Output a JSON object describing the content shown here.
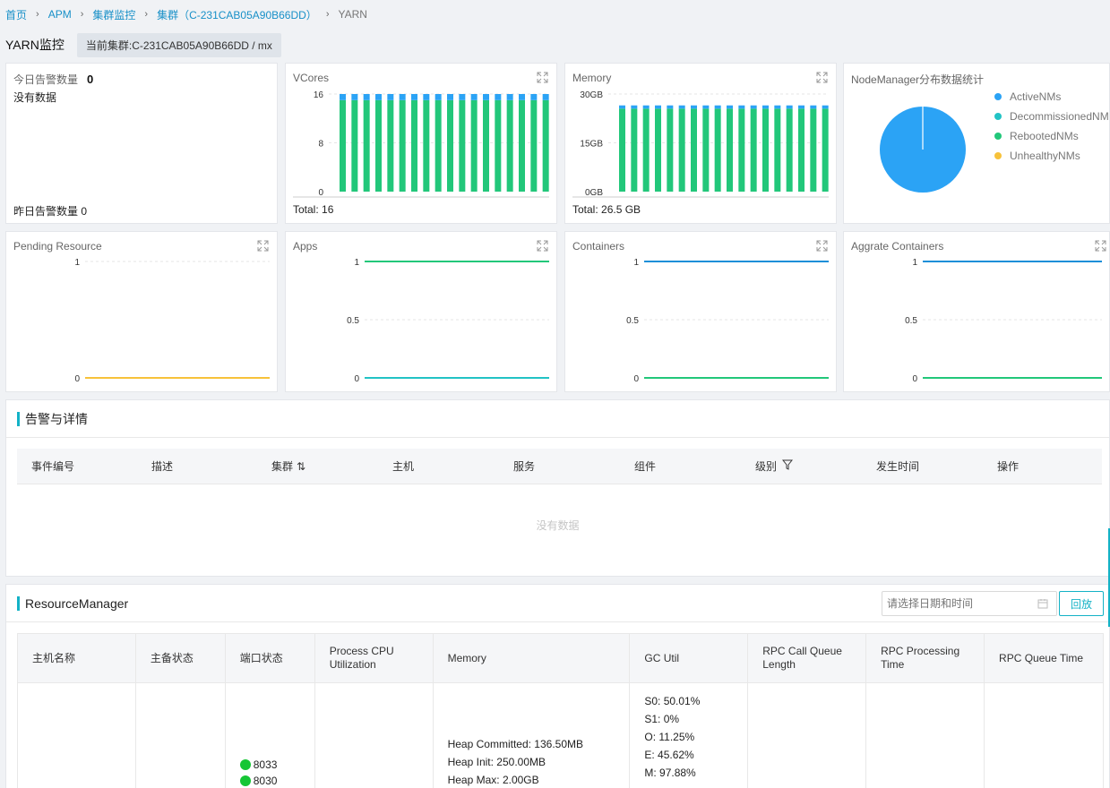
{
  "breadcrumb": {
    "home": "首页",
    "apm": "APM",
    "cluster_monitor": "集群监控",
    "cluster": "集群（C-231CAB05A90B66DD）",
    "current": "YARN"
  },
  "header": {
    "title": "YARN监控",
    "current_cluster": "当前集群:C-231CAB05A90B66DD / mx"
  },
  "alarms": {
    "today_label": "今日告警数量",
    "today_count": "0",
    "no_data": "没有数据",
    "yesterday": "昨日告警数量 0"
  },
  "colors": {
    "green": "#22c77a",
    "blue": "#2ba3f5",
    "teal": "#22c3c5",
    "yellow": "#f7c23a",
    "accent": "#13b2c6",
    "line_blue": "#1a8fd8"
  },
  "vcores": {
    "title": "VCores",
    "total": "Total: 16",
    "chart_data": {
      "type": "bar",
      "stacked": true,
      "bar_count": 18,
      "series": [
        {
          "name": "",
          "color": "green",
          "values": [
            15,
            15,
            15,
            15,
            15,
            15,
            15,
            15,
            15,
            15,
            15,
            15,
            15,
            15,
            15,
            15,
            15,
            15
          ]
        },
        {
          "name": "",
          "color": "blue",
          "values": [
            1,
            1,
            1,
            1,
            1,
            1,
            1,
            1,
            1,
            1,
            1,
            1,
            1,
            1,
            1,
            1,
            1,
            1
          ]
        }
      ],
      "ylim": [
        0,
        16
      ],
      "yticks": [
        "0",
        "8",
        "16"
      ]
    }
  },
  "memory": {
    "title": "Memory",
    "total": "Total: 26.5 GB",
    "chart_data": {
      "type": "bar",
      "stacked": true,
      "bar_count": 18,
      "series": [
        {
          "name": "",
          "color": "green",
          "values": [
            25.5,
            25.5,
            25.5,
            25.5,
            25.5,
            25.5,
            25.5,
            25.5,
            25.5,
            25.5,
            25.5,
            25.5,
            25.5,
            25.5,
            25.5,
            25.5,
            25.5,
            25.5
          ]
        },
        {
          "name": "",
          "color": "blue",
          "values": [
            1,
            1,
            1,
            1,
            1,
            1,
            1,
            1,
            1,
            1,
            1,
            1,
            1,
            1,
            1,
            1,
            1,
            1
          ]
        }
      ],
      "ylim": [
        0,
        30
      ],
      "yticks": [
        "0GB",
        "15GB",
        "30GB"
      ]
    }
  },
  "nodemanager": {
    "title": "NodeManager分布数据统计",
    "chart_data": {
      "type": "pie",
      "slices": [
        {
          "name": "ActiveNMs",
          "value": 1,
          "color": "blue"
        },
        {
          "name": "DecommissionedNMs",
          "value": 0,
          "color": "teal"
        },
        {
          "name": "RebootedNMs",
          "value": 0,
          "color": "green"
        },
        {
          "name": "UnhealthyNMs",
          "value": 0,
          "color": "yellow"
        }
      ]
    },
    "legend": [
      "ActiveNMs",
      "DecommissionedNMs",
      "RebootedNMs",
      "UnhealthyNMs"
    ]
  },
  "pending": {
    "title": "Pending Resource",
    "chart_data": {
      "type": "line",
      "yticks": [
        "0",
        "1"
      ],
      "ylim": [
        0,
        1
      ],
      "series": [
        {
          "name": "",
          "color": "yellow",
          "values": [
            0,
            0
          ]
        }
      ]
    }
  },
  "apps": {
    "title": "Apps",
    "chart_data": {
      "type": "line",
      "yticks": [
        "0",
        "0.5",
        "1"
      ],
      "ylim": [
        0,
        1
      ],
      "series": [
        {
          "name": "",
          "color": "green",
          "values": [
            1,
            1
          ]
        },
        {
          "name": "",
          "color": "teal",
          "values": [
            0,
            0
          ]
        }
      ]
    }
  },
  "containers": {
    "title": "Containers",
    "chart_data": {
      "type": "line",
      "yticks": [
        "0",
        "0.5",
        "1"
      ],
      "ylim": [
        0,
        1
      ],
      "series": [
        {
          "name": "",
          "color": "line_blue",
          "values": [
            1,
            1
          ]
        },
        {
          "name": "",
          "color": "green",
          "values": [
            0,
            0
          ]
        }
      ]
    }
  },
  "aggrate": {
    "title": "Aggrate Containers",
    "chart_data": {
      "type": "line",
      "yticks": [
        "0",
        "0.5",
        "1"
      ],
      "ylim": [
        0,
        1
      ],
      "series": [
        {
          "name": "",
          "color": "line_blue",
          "values": [
            1,
            1
          ]
        },
        {
          "name": "",
          "color": "green",
          "values": [
            0,
            0
          ]
        }
      ]
    }
  },
  "alerts_panel": {
    "title": "告警与详情",
    "columns": [
      "事件编号",
      "描述",
      "集群",
      "主机",
      "服务",
      "组件",
      "级别",
      "发生时间",
      "操作"
    ],
    "empty": "没有数据"
  },
  "rm_panel": {
    "title": "ResourceManager",
    "date_placeholder": "请选择日期和时间",
    "playback": "回放",
    "columns": [
      "主机名称",
      "主备状态",
      "端口状态",
      "Process CPU Utilization",
      "Memory",
      "GC Util",
      "RPC Call Queue Length",
      "RPC Processing Time",
      "RPC Queue Time"
    ],
    "row": {
      "ports": [
        "8033",
        "8030"
      ],
      "memory": [
        "Heap Committed: 136.50MB",
        "Heap Init: 250.00MB",
        "Heap Max: 2.00GB"
      ],
      "gc": [
        "S0: 50.01%",
        "S1: 0%",
        "O: 11.25%",
        "E: 45.62%",
        "M: 97.88%"
      ]
    }
  }
}
